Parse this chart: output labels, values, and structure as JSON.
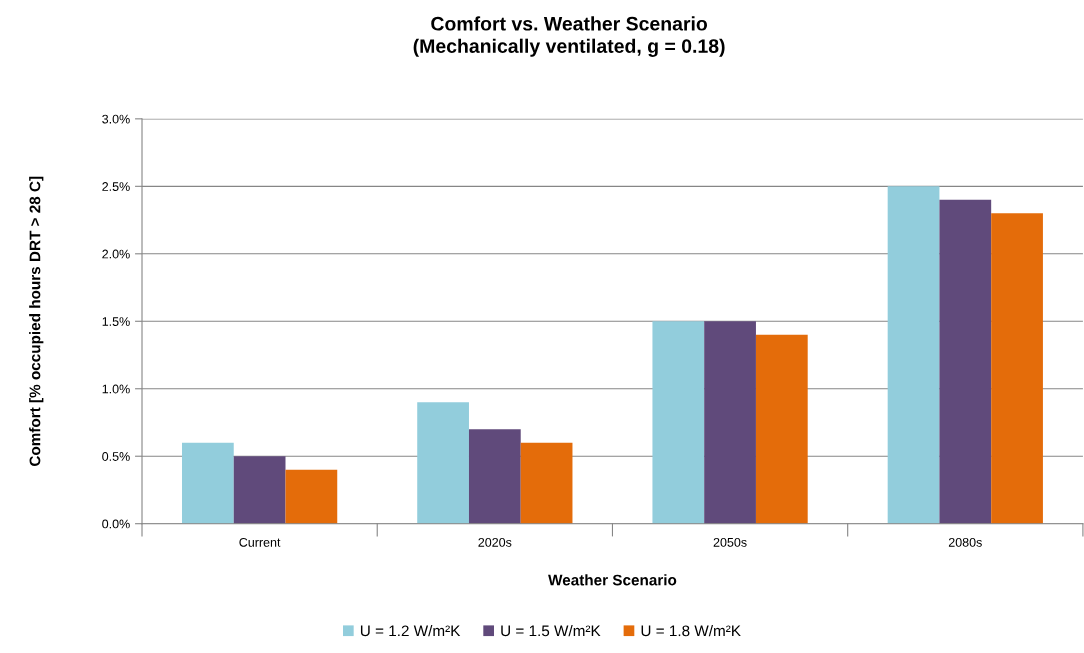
{
  "chart_data": {
    "type": "bar",
    "title": "Comfort vs. Weather Scenario\n(Mechanically ventilated, g = 0.18)",
    "xlabel": "Weather Scenario",
    "ylabel": "Comfort [% occupied hours DRT > 28 C]",
    "categories": [
      "Current",
      "2020s",
      "2050s",
      "2080s"
    ],
    "series": [
      {
        "name": "U = 1.2 W/m²K",
        "color": "#92cddc",
        "values": [
          0.6,
          0.9,
          1.5,
          2.5
        ]
      },
      {
        "name": "U = 1.5 W/m²K",
        "color": "#604a7b",
        "values": [
          0.5,
          0.7,
          1.5,
          2.4
        ]
      },
      {
        "name": "U = 1.8 W/m²K",
        "color": "#e46c0a",
        "values": [
          0.4,
          0.6,
          1.4,
          2.3
        ]
      }
    ],
    "ylim": [
      0,
      3.0
    ],
    "yticks": [
      {
        "value": 0,
        "label": "0.0%"
      },
      {
        "value": 0.5,
        "label": "0.5%"
      },
      {
        "value": 1.0,
        "label": "1.0%"
      },
      {
        "value": 1.5,
        "label": "1.5%"
      },
      {
        "value": 2.0,
        "label": "2.0%"
      },
      {
        "value": 2.5,
        "label": "2.5%"
      },
      {
        "value": 3.0,
        "label": "3.0%"
      }
    ],
    "grid": "y",
    "legend": "bottom"
  }
}
